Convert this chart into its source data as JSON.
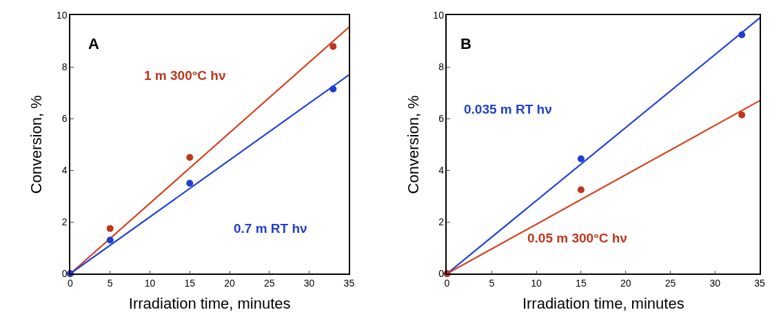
{
  "chart_data": [
    {
      "type": "scatter",
      "title": "A",
      "xlabel": "Irradiation time, minutes",
      "ylabel": "Conversion, %",
      "xlim": [
        0,
        35
      ],
      "ylim": [
        0,
        10
      ],
      "xticks": [
        0,
        5,
        10,
        15,
        20,
        25,
        30,
        35
      ],
      "yticks": [
        0,
        2,
        4,
        6,
        8,
        10
      ],
      "legend": false,
      "marker": "circle",
      "series": [
        {
          "type": "line",
          "color": "#d8401c",
          "x": [
            0,
            35
          ],
          "values": [
            0,
            9.55
          ],
          "marker": "none"
        },
        {
          "type": "line",
          "color": "#2040d8",
          "x": [
            0,
            35
          ],
          "values": [
            0,
            7.7
          ],
          "marker": "none"
        },
        {
          "name": "1 m 300°C hν",
          "color": "#c0361c",
          "x": [
            0,
            5,
            15,
            33
          ],
          "values": [
            0,
            1.75,
            4.5,
            8.8
          ]
        },
        {
          "name": "0.7 m RT hν",
          "color": "#1f3fd0",
          "x": [
            0,
            5,
            15,
            33
          ],
          "values": [
            0,
            1.3,
            3.5,
            7.15
          ]
        }
      ]
    },
    {
      "type": "scatter",
      "title": "B",
      "xlabel": "Irradiation time, minutes",
      "ylabel": "Conversion, %",
      "xlim": [
        0,
        35
      ],
      "ylim": [
        0,
        10
      ],
      "xticks": [
        0,
        5,
        10,
        15,
        20,
        25,
        30,
        35
      ],
      "yticks": [
        0,
        2,
        4,
        6,
        8,
        10
      ],
      "legend": false,
      "marker": "circle",
      "series": [
        {
          "type": "line",
          "color": "#2040d8",
          "x": [
            0,
            35
          ],
          "values": [
            0,
            9.9
          ],
          "marker": "none"
        },
        {
          "type": "line",
          "color": "#d8401c",
          "x": [
            0,
            35
          ],
          "values": [
            0,
            6.7
          ],
          "marker": "none"
        },
        {
          "name": "0.035 m RT hν",
          "color": "#1f3fd0",
          "x": [
            0,
            15,
            33
          ],
          "values": [
            0,
            4.45,
            9.25
          ]
        },
        {
          "name": "0.05 m 300°C hν",
          "color": "#c0361c",
          "x": [
            0,
            15,
            33
          ],
          "values": [
            0,
            3.25,
            6.15
          ]
        }
      ]
    }
  ]
}
